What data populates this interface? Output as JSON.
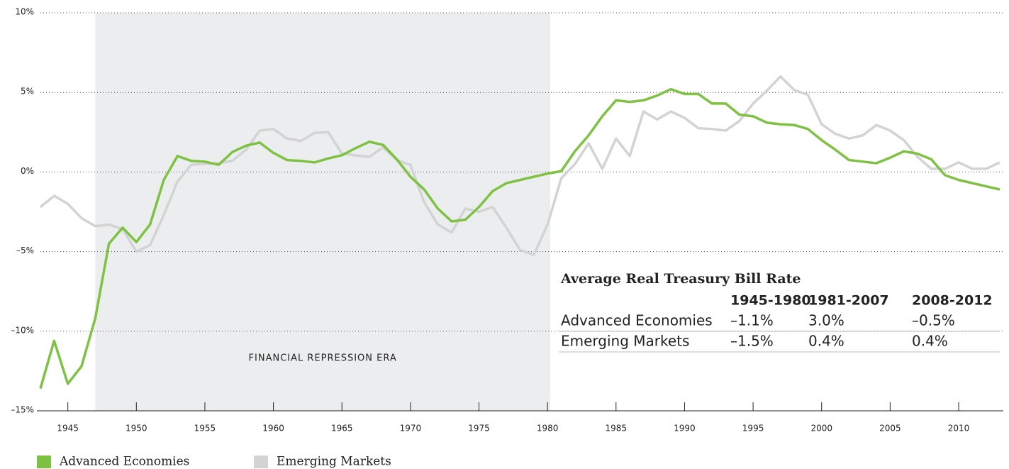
{
  "chart_data": {
    "type": "line",
    "x": [
      1943,
      1944,
      1945,
      1946,
      1947,
      1948,
      1949,
      1950,
      1951,
      1952,
      1953,
      1954,
      1955,
      1956,
      1957,
      1958,
      1959,
      1960,
      1961,
      1962,
      1963,
      1964,
      1965,
      1966,
      1967,
      1968,
      1969,
      1970,
      1971,
      1972,
      1973,
      1974,
      1975,
      1976,
      1977,
      1978,
      1979,
      1980,
      1981,
      1982,
      1983,
      1984,
      1985,
      1986,
      1987,
      1988,
      1989,
      1990,
      1991,
      1992,
      1993,
      1994,
      1995,
      1996,
      1997,
      1998,
      1999,
      2000,
      2001,
      2002,
      2003,
      2004,
      2005,
      2006,
      2007,
      2008,
      2009,
      2010,
      2011,
      2012,
      2013
    ],
    "series": [
      {
        "name": "Advanced Economies",
        "color": "#7dc242",
        "values": [
          -13.6,
          -10.6,
          -13.3,
          -12.2,
          -9.2,
          -4.5,
          -3.5,
          -4.4,
          -3.3,
          -0.5,
          1.0,
          0.7,
          0.65,
          0.45,
          1.25,
          1.65,
          1.85,
          1.2,
          0.75,
          0.7,
          0.6,
          0.85,
          1.05,
          1.5,
          1.9,
          1.7,
          0.8,
          -0.3,
          -1.1,
          -2.3,
          -3.1,
          -3.0,
          -2.2,
          -1.2,
          -0.7,
          -0.5,
          -0.3,
          -0.1,
          0.05,
          1.3,
          2.3,
          3.5,
          4.5,
          4.4,
          4.5,
          4.8,
          5.2,
          4.9,
          4.9,
          4.3,
          4.3,
          3.6,
          3.5,
          3.1,
          3.0,
          2.95,
          2.7,
          2.0,
          1.4,
          0.75,
          0.65,
          0.55,
          0.9,
          1.3,
          1.15,
          0.8,
          -0.2,
          -0.5,
          -0.7,
          -0.9,
          -1.1
        ]
      },
      {
        "name": "Emerging Markets",
        "color": "#d3d3d3",
        "values": [
          -2.2,
          -1.5,
          -2.0,
          -2.9,
          -3.4,
          -3.3,
          -3.6,
          -5.0,
          -4.6,
          -2.7,
          -0.6,
          0.45,
          0.5,
          0.55,
          0.7,
          1.4,
          2.6,
          2.7,
          2.1,
          1.95,
          2.45,
          2.5,
          1.15,
          1.05,
          0.95,
          1.55,
          0.75,
          0.45,
          -1.9,
          -3.3,
          -3.8,
          -2.3,
          -2.5,
          -2.2,
          -3.5,
          -4.9,
          -5.2,
          -3.3,
          -0.4,
          0.5,
          1.8,
          0.2,
          2.1,
          1.0,
          3.8,
          3.3,
          3.8,
          3.4,
          2.75,
          2.7,
          2.6,
          3.2,
          4.3,
          5.1,
          6.0,
          5.15,
          4.85,
          3.0,
          2.4,
          2.1,
          2.3,
          2.95,
          2.6,
          2.0,
          0.95,
          0.2,
          0.2,
          0.6,
          0.2,
          0.2,
          0.6
        ]
      }
    ],
    "xlim": [
      1943,
      2013
    ],
    "xticks": [
      1945,
      1950,
      1955,
      1960,
      1965,
      1970,
      1975,
      1980,
      1985,
      1990,
      1995,
      2000,
      2005,
      2010
    ],
    "ylim": [
      -15,
      10
    ],
    "yticks": [
      {
        "value": -15,
        "label": "–15%"
      },
      {
        "value": -10,
        "label": "–10%"
      },
      {
        "value": -5,
        "label": "–5%"
      },
      {
        "value": 0,
        "label": "0%"
      },
      {
        "value": 5,
        "label": "5%"
      },
      {
        "value": 10,
        "label": "10%"
      }
    ],
    "grid": true,
    "span": {
      "x": [
        1947,
        1980.2
      ],
      "label": "FINANCIAL REPRESSION ERA",
      "color": "#ecedef"
    },
    "table": {
      "title": "Average Real Treasury Bill Rate",
      "columns": [
        "1945-1980",
        "1981-2007",
        "2008-2012"
      ],
      "rows": [
        {
          "name": "Advanced Economies",
          "values": [
            "–1.1%",
            "3.0%",
            "–0.5%"
          ]
        },
        {
          "name": "Emerging Markets",
          "values": [
            "–1.5%",
            "0.4%",
            "0.4%"
          ]
        }
      ]
    }
  }
}
